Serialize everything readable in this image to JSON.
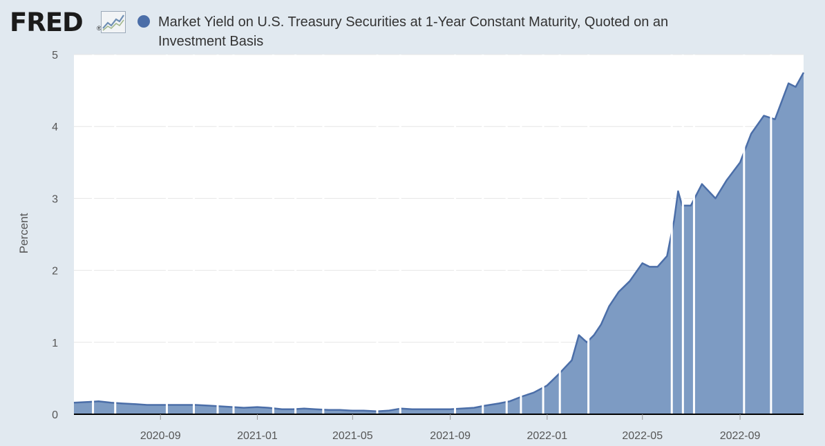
{
  "logo": {
    "text": "FRED",
    "reg": "®"
  },
  "colors": {
    "background": "#e1e9f0",
    "plot_background": "#ffffff",
    "series_line": "#4b6ea8",
    "series_fill": "#7d9bc3",
    "grid": "#e6e6e6",
    "axis": "#000000"
  },
  "chart_data": {
    "type": "area",
    "title": "Market Yield on U.S. Treasury Securities at 1-Year Constant Maturity, Quoted on an Investment Basis",
    "ylabel": "Percent",
    "ylim": [
      0,
      5
    ],
    "yticks": [
      0,
      1,
      2,
      3,
      4,
      5
    ],
    "xlim": [
      "2020-05-15",
      "2022-11-20"
    ],
    "xticks": [
      "2020-09",
      "2021-01",
      "2021-05",
      "2021-09",
      "2022-01",
      "2022-05",
      "2022-09"
    ],
    "grid": true,
    "legend": "top",
    "series": [
      {
        "name": "Market Yield on U.S. Treasury Securities at 1-Year Constant Maturity, Quoted on an Investment Basis",
        "x": [
          "2020-05-15",
          "2020-06-01",
          "2020-06-15",
          "2020-07-01",
          "2020-07-15",
          "2020-08-01",
          "2020-08-15",
          "2020-09-01",
          "2020-09-15",
          "2020-10-01",
          "2020-10-15",
          "2020-11-01",
          "2020-11-15",
          "2020-12-01",
          "2020-12-15",
          "2021-01-01",
          "2021-01-15",
          "2021-02-01",
          "2021-02-15",
          "2021-03-01",
          "2021-03-15",
          "2021-04-01",
          "2021-04-15",
          "2021-05-01",
          "2021-05-15",
          "2021-06-01",
          "2021-06-15",
          "2021-07-01",
          "2021-07-15",
          "2021-08-01",
          "2021-08-15",
          "2021-09-01",
          "2021-09-15",
          "2021-10-01",
          "2021-10-15",
          "2021-11-01",
          "2021-11-15",
          "2021-12-01",
          "2021-12-15",
          "2022-01-01",
          "2022-01-15",
          "2022-02-01",
          "2022-02-10",
          "2022-02-20",
          "2022-03-01",
          "2022-03-10",
          "2022-03-20",
          "2022-04-01",
          "2022-04-15",
          "2022-05-01",
          "2022-05-10",
          "2022-05-20",
          "2022-06-01",
          "2022-06-10",
          "2022-06-15",
          "2022-06-20",
          "2022-07-01",
          "2022-07-15",
          "2022-08-01",
          "2022-08-15",
          "2022-09-01",
          "2022-09-15",
          "2022-10-01",
          "2022-10-15",
          "2022-11-01",
          "2022-11-10",
          "2022-11-20"
        ],
        "values": [
          0.16,
          0.17,
          0.18,
          0.16,
          0.15,
          0.14,
          0.13,
          0.13,
          0.13,
          0.13,
          0.13,
          0.12,
          0.11,
          0.1,
          0.09,
          0.1,
          0.09,
          0.07,
          0.07,
          0.08,
          0.07,
          0.06,
          0.06,
          0.05,
          0.05,
          0.04,
          0.05,
          0.08,
          0.07,
          0.07,
          0.07,
          0.07,
          0.08,
          0.09,
          0.12,
          0.15,
          0.18,
          0.25,
          0.3,
          0.4,
          0.55,
          0.75,
          1.1,
          1.0,
          1.1,
          1.25,
          1.5,
          1.7,
          1.85,
          2.1,
          2.05,
          2.05,
          2.2,
          2.7,
          3.1,
          2.9,
          2.9,
          3.2,
          3.0,
          3.25,
          3.5,
          3.9,
          4.15,
          4.1,
          4.6,
          4.55,
          4.75
        ]
      }
    ]
  }
}
